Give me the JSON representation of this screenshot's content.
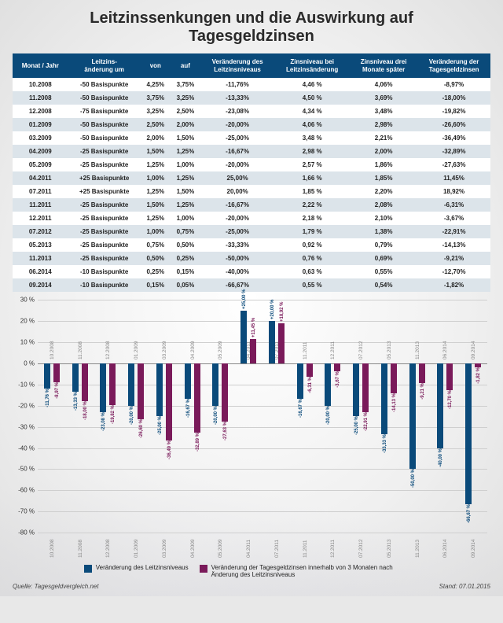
{
  "title_line1": "Leitzinssenkungen und die Auswirkung auf",
  "title_line2": "Tagesgeldzinsen",
  "table": {
    "columns": [
      "Monat / Jahr",
      "Leitzins-\nänderung um",
      "von",
      "auf",
      "Veränderung des\nLeitzinsniveaus",
      "Zinsniveau bei\nLeitzinsänderung",
      "Zinsniveau drei\nMonate später",
      "Veränderung der\nTagesgeldzinsen"
    ],
    "header_bg": "#0a4a7a",
    "header_color": "#ffffff",
    "row_alt_bg": "#dce4ea",
    "rows": [
      [
        "10.2008",
        "-50 Basispunkte",
        "4,25%",
        "3,75%",
        "-11,76%",
        "4,46 %",
        "4,06%",
        "-8,97%"
      ],
      [
        "11.2008",
        "-50 Basispunkte",
        "3,75%",
        "3,25%",
        "-13,33%",
        "4,50 %",
        "3,69%",
        "-18,00%"
      ],
      [
        "12.2008",
        "-75 Basispunkte",
        "3,25%",
        "2,50%",
        "-23,08%",
        "4,34 %",
        "3,48%",
        "-19,82%"
      ],
      [
        "01.2009",
        "-50 Basispunkte",
        "2,50%",
        "2,00%",
        "-20,00%",
        "4,06 %",
        "2,98%",
        "-26,60%"
      ],
      [
        "03.2009",
        "-50 Basispunkte",
        "2,00%",
        "1,50%",
        "-25,00%",
        "3,48 %",
        "2,21%",
        "-36,49%"
      ],
      [
        "04.2009",
        "-25 Basispunkte",
        "1,50%",
        "1,25%",
        "-16,67%",
        "2,98 %",
        "2,00%",
        "-32,89%"
      ],
      [
        "05.2009",
        "-25 Basispunkte",
        "1,25%",
        "1,00%",
        "-20,00%",
        "2,57 %",
        "1,86%",
        "-27,63%"
      ],
      [
        "04.2011",
        "+25 Basispunkte",
        "1,00%",
        "1,25%",
        "25,00%",
        "1,66 %",
        "1,85%",
        "11,45%"
      ],
      [
        "07.2011",
        "+25 Basispunkte",
        "1,25%",
        "1,50%",
        "20,00%",
        "1,85 %",
        "2,20%",
        "18,92%"
      ],
      [
        "11.2011",
        "-25 Basispunkte",
        "1,50%",
        "1,25%",
        "-16,67%",
        "2,22 %",
        "2,08%",
        "-6,31%"
      ],
      [
        "12.2011",
        "-25 Basispunkte",
        "1,25%",
        "1,00%",
        "-20,00%",
        "2,18 %",
        "2,10%",
        "-3,67%"
      ],
      [
        "07.2012",
        "-25 Basispunkte",
        "1,00%",
        "0,75%",
        "-25,00%",
        "1,79 %",
        "1,38%",
        "-22,91%"
      ],
      [
        "05.2013",
        "-25 Basispunkte",
        "0,75%",
        "0,50%",
        "-33,33%",
        "0,92 %",
        "0,79%",
        "-14,13%"
      ],
      [
        "11.2013",
        "-25 Basispunkte",
        "0,50%",
        "0,25%",
        "-50,00%",
        "0,76 %",
        "0,69%",
        "-9,21%"
      ],
      [
        "06.2014",
        "-10 Basispunkte",
        "0,25%",
        "0,15%",
        "-40,00%",
        "0,63 %",
        "0,55%",
        "-12,70%"
      ],
      [
        "09.2014",
        "-10 Basispunkte",
        "0,15%",
        "0,05%",
        "-66,67%",
        "0,55 %",
        "0,54%",
        "-1,82%"
      ]
    ]
  },
  "chart": {
    "categories": [
      "10.2008",
      "11.2008",
      "12.2008",
      "01.2009",
      "03.2009",
      "04.2009",
      "05.2009",
      "04.2011",
      "07.2011",
      "11.2011",
      "12.2011",
      "07.2012",
      "05.2013",
      "11.2013",
      "06.2014",
      "09.2014"
    ],
    "series_a": {
      "name": "Veränderung des Leitzinsniveaus",
      "color": "#0a4a7a",
      "values": [
        -11.76,
        -13.33,
        -23.08,
        -20.0,
        -25.0,
        -16.67,
        -20.0,
        25.0,
        20.0,
        -16.67,
        -20.0,
        -25.0,
        -33.33,
        -50.0,
        -40.0,
        -66.67
      ]
    },
    "series_b": {
      "name": "Veränderung der Tagesgeldzinsen innerhalb von 3 Monaten nach Änderung des Leitzinsniveaus",
      "color": "#7a1a5a",
      "values": [
        -8.97,
        -18.0,
        -19.82,
        -26.6,
        -36.49,
        -32.89,
        -27.63,
        11.45,
        18.92,
        -6.31,
        -3.67,
        -22.91,
        -14.13,
        -9.21,
        -12.7,
        -1.82
      ]
    },
    "y_min": -80,
    "y_max": 30,
    "y_step": 10,
    "grid_color": "#cfcfcf",
    "label_fontsize": 8
  },
  "legend": {
    "a": "Veränderung des Leitzinsniveaus",
    "b": "Veränderung der Tagesgeldzinsen innerhalb von 3 Monaten nach Änderung des Leitzinsniveaus"
  },
  "footer": {
    "source_label": "Quelle:",
    "source": "Tagesgeldvergleich.net",
    "date_label": "Stand:",
    "date": "07.01.2015"
  }
}
